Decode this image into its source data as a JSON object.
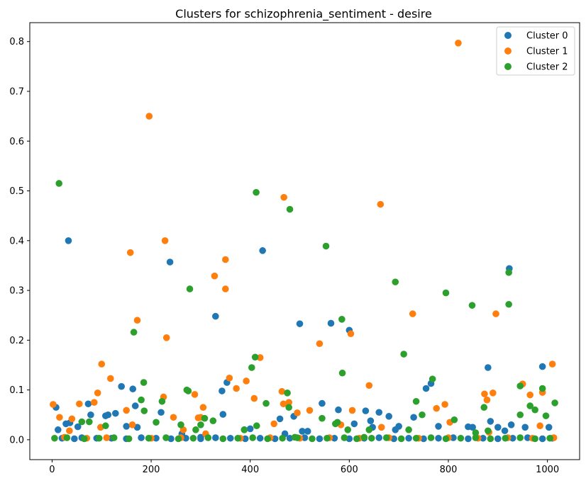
{
  "chart_data": {
    "type": "scatter",
    "title": "Clusters for schizophrenia_sentiment - desire",
    "xlabel": "",
    "ylabel": "",
    "xlim": [
      -45,
      1065
    ],
    "ylim": [
      -0.04,
      0.838
    ],
    "xticks": [
      0,
      200,
      400,
      600,
      800,
      1000
    ],
    "yticks": [
      0.0,
      0.1,
      0.2,
      0.3,
      0.4,
      0.5,
      0.6,
      0.7,
      0.8
    ],
    "xtick_labels": [
      "0",
      "200",
      "400",
      "600",
      "800",
      "1000"
    ],
    "ytick_labels": [
      "0.0",
      "0.1",
      "0.2",
      "0.3",
      "0.4",
      "0.5",
      "0.6",
      "0.7",
      "0.8"
    ],
    "grid": false,
    "legend_position": "top-right",
    "series": [
      {
        "name": "Cluster 0",
        "color": "#1f77b4",
        "points": [
          [
            8,
            0.065
          ],
          [
            12,
            0.02
          ],
          [
            28,
            0.032
          ],
          [
            33,
            0.4
          ],
          [
            36,
            0.034
          ],
          [
            52,
            0.026
          ],
          [
            73,
            0.072
          ],
          [
            78,
            0.05
          ],
          [
            108,
            0.048
          ],
          [
            113,
            0.05
          ],
          [
            128,
            0.053
          ],
          [
            140,
            0.107
          ],
          [
            150,
            0.027
          ],
          [
            163,
            0.102
          ],
          [
            168,
            0.068
          ],
          [
            172,
            0.025
          ],
          [
            220,
            0.055
          ],
          [
            238,
            0.357
          ],
          [
            262,
            0.012
          ],
          [
            300,
            0.005
          ],
          [
            330,
            0.248
          ],
          [
            343,
            0.098
          ],
          [
            345,
            0.051
          ],
          [
            353,
            0.115
          ],
          [
            388,
            0.02
          ],
          [
            400,
            0.022
          ],
          [
            425,
            0.38
          ],
          [
            460,
            0.042
          ],
          [
            470,
            0.012
          ],
          [
            488,
            0.047
          ],
          [
            500,
            0.233
          ],
          [
            505,
            0.017
          ],
          [
            516,
            0.017
          ],
          [
            545,
            0.073
          ],
          [
            563,
            0.234
          ],
          [
            578,
            0.06
          ],
          [
            600,
            0.22
          ],
          [
            610,
            0.032
          ],
          [
            633,
            0.058
          ],
          [
            643,
            0.038
          ],
          [
            647,
            0.025
          ],
          [
            660,
            0.055
          ],
          [
            680,
            0.047
          ],
          [
            693,
            0.02
          ],
          [
            700,
            0.027
          ],
          [
            730,
            0.045
          ],
          [
            755,
            0.103
          ],
          [
            765,
            0.113
          ],
          [
            780,
            0.027
          ],
          [
            840,
            0.026
          ],
          [
            849,
            0.025
          ],
          [
            880,
            0.145
          ],
          [
            885,
            0.037
          ],
          [
            900,
            0.025
          ],
          [
            914,
            0.018
          ],
          [
            923,
            0.344
          ],
          [
            927,
            0.03
          ],
          [
            955,
            0.025
          ],
          [
            990,
            0.147
          ],
          [
            1003,
            0.025
          ],
          [
            20,
            0.003
          ],
          [
            45,
            0.002
          ],
          [
            60,
            0.004
          ],
          [
            90,
            0.003
          ],
          [
            120,
            0.003
          ],
          [
            150,
            0.002
          ],
          [
            180,
            0.004
          ],
          [
            210,
            0.003
          ],
          [
            240,
            0.002
          ],
          [
            270,
            0.003
          ],
          [
            300,
            0.002
          ],
          [
            330,
            0.004
          ],
          [
            360,
            0.003
          ],
          [
            390,
            0.002
          ],
          [
            420,
            0.003
          ],
          [
            450,
            0.002
          ],
          [
            480,
            0.003
          ],
          [
            510,
            0.004
          ],
          [
            540,
            0.002
          ],
          [
            570,
            0.003
          ],
          [
            600,
            0.002
          ],
          [
            630,
            0.003
          ],
          [
            660,
            0.004
          ],
          [
            690,
            0.002
          ],
          [
            720,
            0.003
          ],
          [
            750,
            0.002
          ],
          [
            780,
            0.003
          ],
          [
            810,
            0.004
          ],
          [
            840,
            0.002
          ],
          [
            870,
            0.003
          ],
          [
            900,
            0.002
          ],
          [
            930,
            0.003
          ],
          [
            960,
            0.004
          ],
          [
            990,
            0.002
          ],
          [
            1010,
            0.003
          ]
        ]
      },
      {
        "name": "Cluster 1",
        "color": "#ff7f0e",
        "points": [
          [
            2,
            0.071
          ],
          [
            15,
            0.045
          ],
          [
            35,
            0.018
          ],
          [
            40,
            0.042
          ],
          [
            55,
            0.072
          ],
          [
            85,
            0.075
          ],
          [
            92,
            0.094
          ],
          [
            98,
            0.025
          ],
          [
            100,
            0.152
          ],
          [
            118,
            0.123
          ],
          [
            150,
            0.059
          ],
          [
            158,
            0.376
          ],
          [
            162,
            0.03
          ],
          [
            172,
            0.24
          ],
          [
            196,
            0.65
          ],
          [
            225,
            0.086
          ],
          [
            228,
            0.4
          ],
          [
            231,
            0.205
          ],
          [
            245,
            0.045
          ],
          [
            265,
            0.02
          ],
          [
            288,
            0.091
          ],
          [
            295,
            0.044
          ],
          [
            300,
            0.045
          ],
          [
            305,
            0.065
          ],
          [
            328,
            0.329
          ],
          [
            350,
            0.362
          ],
          [
            350,
            0.303
          ],
          [
            358,
            0.124
          ],
          [
            372,
            0.103
          ],
          [
            392,
            0.118
          ],
          [
            408,
            0.083
          ],
          [
            420,
            0.165
          ],
          [
            448,
            0.032
          ],
          [
            464,
            0.097
          ],
          [
            467,
            0.072
          ],
          [
            468,
            0.487
          ],
          [
            478,
            0.075
          ],
          [
            495,
            0.054
          ],
          [
            520,
            0.059
          ],
          [
            540,
            0.193
          ],
          [
            583,
            0.03
          ],
          [
            603,
            0.213
          ],
          [
            606,
            0.059
          ],
          [
            640,
            0.109
          ],
          [
            663,
            0.473
          ],
          [
            665,
            0.025
          ],
          [
            728,
            0.253
          ],
          [
            776,
            0.063
          ],
          [
            793,
            0.071
          ],
          [
            803,
            0.035
          ],
          [
            820,
            0.797
          ],
          [
            873,
            0.092
          ],
          [
            878,
            0.08
          ],
          [
            882,
            0.015
          ],
          [
            890,
            0.094
          ],
          [
            896,
            0.253
          ],
          [
            950,
            0.112
          ],
          [
            965,
            0.09
          ],
          [
            985,
            0.028
          ],
          [
            990,
            0.095
          ],
          [
            1010,
            0.152
          ],
          [
            1013,
            0.004
          ],
          [
            25,
            0.005
          ],
          [
            70,
            0.003
          ],
          [
            110,
            0.004
          ],
          [
            200,
            0.003
          ],
          [
            260,
            0.004
          ],
          [
            310,
            0.012
          ],
          [
            380,
            0.003
          ],
          [
            440,
            0.004
          ],
          [
            500,
            0.003
          ],
          [
            560,
            0.004
          ],
          [
            620,
            0.003
          ],
          [
            680,
            0.004
          ],
          [
            740,
            0.003
          ],
          [
            800,
            0.004
          ],
          [
            860,
            0.003
          ],
          [
            920,
            0.004
          ],
          [
            970,
            0.003
          ]
        ]
      },
      {
        "name": "Cluster 2",
        "color": "#2ca02c",
        "points": [
          [
            14,
            0.515
          ],
          [
            60,
            0.036
          ],
          [
            75,
            0.036
          ],
          [
            108,
            0.028
          ],
          [
            165,
            0.216
          ],
          [
            180,
            0.08
          ],
          [
            185,
            0.115
          ],
          [
            186,
            0.058
          ],
          [
            210,
            0.035
          ],
          [
            222,
            0.077
          ],
          [
            260,
            0.03
          ],
          [
            272,
            0.1
          ],
          [
            275,
            0.098
          ],
          [
            278,
            0.303
          ],
          [
            290,
            0.02
          ],
          [
            300,
            0.03
          ],
          [
            308,
            0.043
          ],
          [
            325,
            0.038
          ],
          [
            388,
            0.02
          ],
          [
            403,
            0.145
          ],
          [
            410,
            0.166
          ],
          [
            412,
            0.497
          ],
          [
            413,
            0.028
          ],
          [
            432,
            0.073
          ],
          [
            475,
            0.094
          ],
          [
            478,
            0.065
          ],
          [
            480,
            0.463
          ],
          [
            490,
            0.005
          ],
          [
            545,
            0.043
          ],
          [
            553,
            0.389
          ],
          [
            572,
            0.032
          ],
          [
            576,
            0.035
          ],
          [
            585,
            0.242
          ],
          [
            586,
            0.134
          ],
          [
            597,
            0.02
          ],
          [
            630,
            0.005
          ],
          [
            640,
            0.02
          ],
          [
            693,
            0.317
          ],
          [
            710,
            0.172
          ],
          [
            720,
            0.02
          ],
          [
            735,
            0.077
          ],
          [
            747,
            0.05
          ],
          [
            768,
            0.122
          ],
          [
            795,
            0.295
          ],
          [
            812,
            0.04
          ],
          [
            848,
            0.27
          ],
          [
            855,
            0.014
          ],
          [
            872,
            0.065
          ],
          [
            880,
            0.018
          ],
          [
            922,
            0.336
          ],
          [
            922,
            0.272
          ],
          [
            945,
            0.108
          ],
          [
            945,
            0.05
          ],
          [
            965,
            0.068
          ],
          [
            975,
            0.06
          ],
          [
            990,
            0.103
          ],
          [
            997,
            0.048
          ],
          [
            1015,
            0.074
          ],
          [
            5,
            0.003
          ],
          [
            30,
            0.004
          ],
          [
            65,
            0.002
          ],
          [
            95,
            0.003
          ],
          [
            125,
            0.004
          ],
          [
            155,
            0.002
          ],
          [
            195,
            0.003
          ],
          [
            230,
            0.004
          ],
          [
            255,
            0.002
          ],
          [
            285,
            0.003
          ],
          [
            315,
            0.004
          ],
          [
            345,
            0.002
          ],
          [
            375,
            0.003
          ],
          [
            405,
            0.004
          ],
          [
            435,
            0.002
          ],
          [
            465,
            0.003
          ],
          [
            495,
            0.004
          ],
          [
            525,
            0.002
          ],
          [
            555,
            0.003
          ],
          [
            590,
            0.004
          ],
          [
            615,
            0.002
          ],
          [
            645,
            0.003
          ],
          [
            675,
            0.004
          ],
          [
            705,
            0.002
          ],
          [
            735,
            0.003
          ],
          [
            765,
            0.004
          ],
          [
            795,
            0.002
          ],
          [
            825,
            0.003
          ],
          [
            855,
            0.004
          ],
          [
            885,
            0.002
          ],
          [
            915,
            0.003
          ],
          [
            945,
            0.004
          ],
          [
            975,
            0.002
          ],
          [
            1005,
            0.003
          ]
        ]
      }
    ]
  }
}
